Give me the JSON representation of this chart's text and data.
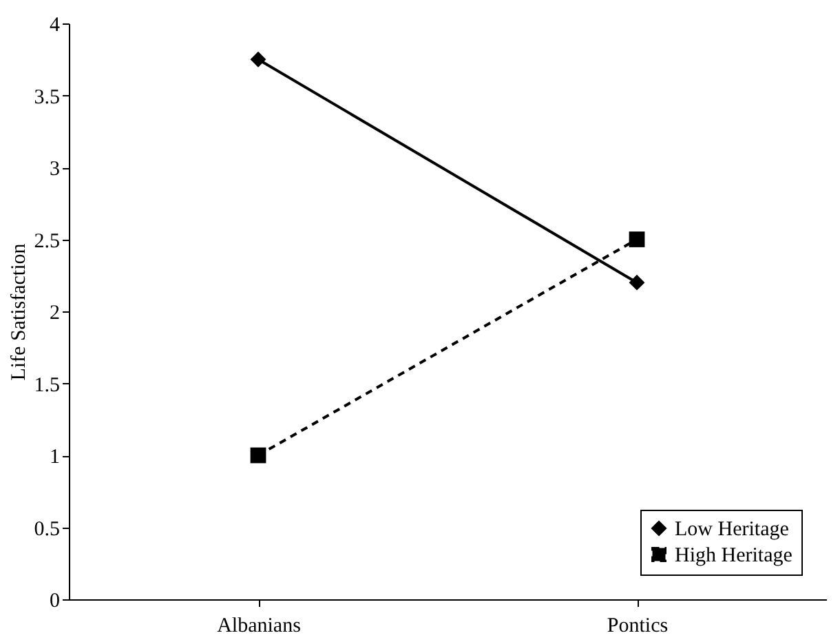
{
  "chart_data": {
    "type": "line",
    "ylabel": "Life Satisfaction",
    "categories": [
      "Albanians",
      "Pontics"
    ],
    "ylim": [
      0,
      4
    ],
    "yticks": [
      0,
      0.5,
      1,
      1.5,
      2,
      2.5,
      3,
      3.5,
      4
    ],
    "grid": false,
    "legend": "bottom right",
    "series": [
      {
        "name": "Low Heritage",
        "color": "#000000",
        "values": [
          3.75,
          2.2
        ],
        "marker": "diamond",
        "line_style": "solid"
      },
      {
        "name": "High Heritage",
        "color": "#000000",
        "values": [
          1.0,
          2.5
        ],
        "marker": "square",
        "line_style": "dashed"
      }
    ]
  }
}
